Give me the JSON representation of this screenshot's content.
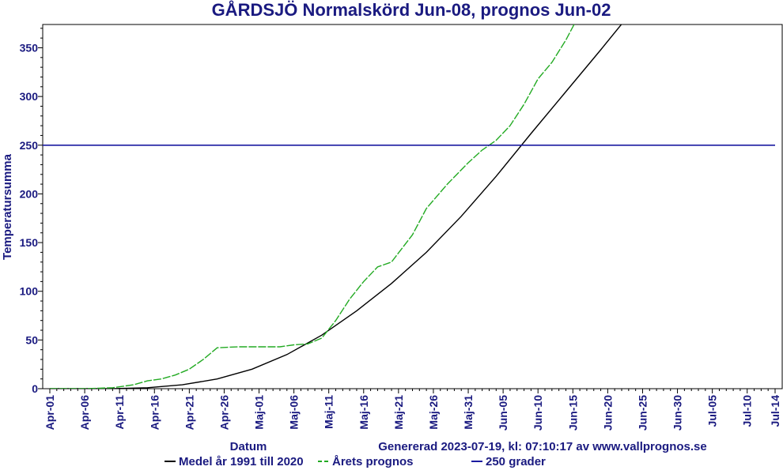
{
  "chart_data": {
    "type": "line",
    "title": "GÅRDSJÖ Normalskörd Jun-08, prognos Jun-02",
    "xlabel": "Datum",
    "ylabel": "Temperatursumma",
    "footer": "Genererad 2023-07-19, kl: 07:10:17 av www.vallprognos.se",
    "xlim": [
      "2023-04-01",
      "2023-07-14"
    ],
    "ylim": [
      0,
      380
    ],
    "x_ticks": [
      "Apr-01",
      "Apr-06",
      "Apr-11",
      "Apr-16",
      "Apr-21",
      "Apr-26",
      "Maj-01",
      "Maj-06",
      "Maj-11",
      "Maj-16",
      "Maj-21",
      "Maj-26",
      "Maj-31",
      "Jun-05",
      "Jun-10",
      "Jun-15",
      "Jun-20",
      "Jun-25",
      "Jun-30",
      "Jul-05",
      "Jul-10",
      "Jul-14"
    ],
    "y_ticks": [
      0,
      50,
      100,
      150,
      200,
      250,
      300,
      350
    ],
    "grid": false,
    "legend_position": "bottom",
    "series": [
      {
        "name": "Medel år 1991 till 2020",
        "color": "#000000",
        "style": "solid",
        "x": [
          "2023-04-01",
          "2023-04-10",
          "2023-04-15",
          "2023-04-20",
          "2023-04-25",
          "2023-04-30",
          "2023-05-05",
          "2023-05-10",
          "2023-05-15",
          "2023-05-20",
          "2023-05-25",
          "2023-05-30",
          "2023-06-04",
          "2023-06-09",
          "2023-06-14",
          "2023-06-19",
          "2023-06-24"
        ],
        "y": [
          0,
          0,
          1,
          4,
          10,
          20,
          35,
          55,
          80,
          108,
          140,
          177,
          218,
          262,
          305,
          348,
          392
        ]
      },
      {
        "name": "Årets prognos",
        "color": "#22aa22",
        "style": "dashed",
        "x": [
          "2023-04-01",
          "2023-04-06",
          "2023-04-10",
          "2023-04-13",
          "2023-04-15",
          "2023-04-17",
          "2023-04-19",
          "2023-04-21",
          "2023-04-23",
          "2023-04-25",
          "2023-04-28",
          "2023-05-01",
          "2023-05-04",
          "2023-05-06",
          "2023-05-08",
          "2023-05-10",
          "2023-05-12",
          "2023-05-14",
          "2023-05-16",
          "2023-05-18",
          "2023-05-20",
          "2023-05-23",
          "2023-05-25",
          "2023-05-28",
          "2023-05-31",
          "2023-06-02",
          "2023-06-04",
          "2023-06-06",
          "2023-06-08",
          "2023-06-10",
          "2023-06-12",
          "2023-06-14",
          "2023-06-16"
        ],
        "y": [
          0,
          0,
          1,
          4,
          8,
          10,
          14,
          20,
          30,
          42,
          43,
          43,
          43,
          45,
          46,
          52,
          70,
          92,
          110,
          125,
          130,
          158,
          185,
          210,
          232,
          245,
          255,
          270,
          292,
          318,
          335,
          358,
          385
        ]
      },
      {
        "name": "250 grader",
        "color": "#1a1aa0",
        "style": "solid",
        "x": [
          "2023-04-01",
          "2023-07-14"
        ],
        "y": [
          250,
          250
        ]
      }
    ]
  }
}
